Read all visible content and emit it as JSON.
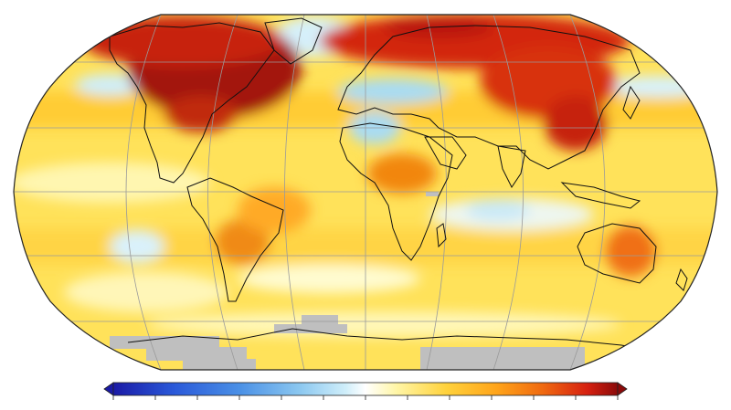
{
  "figure": {
    "title": "",
    "colorbar": {
      "colors": [
        "#1a1aa6",
        "#2a59d9",
        "#4a90e6",
        "#8cc8f0",
        "#cfeefa",
        "#ffffff",
        "#fff6a8",
        "#ffd23c",
        "#ffa41a",
        "#f06a10",
        "#d62010",
        "#8b0a0a"
      ],
      "tick_count": 12,
      "tick_labels": []
    },
    "land_masked_color": "#bfbfbf"
  }
}
